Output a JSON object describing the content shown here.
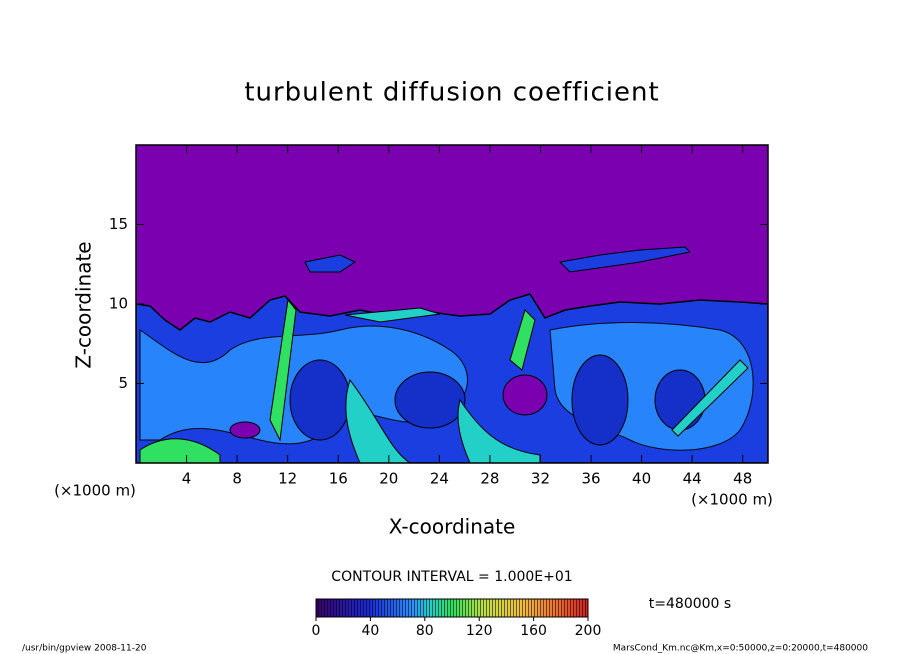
{
  "chart_data": {
    "type": "contour",
    "title": "turbulent diffusion coefficient",
    "xlabel": "X-coordinate",
    "ylabel": "Z-coordinate",
    "xunit": "(×1000 m)",
    "yunit": "(×1000 m)",
    "xlim": [
      0,
      50
    ],
    "ylim": [
      0,
      20
    ],
    "xticks": [
      4,
      8,
      12,
      16,
      20,
      24,
      28,
      32,
      36,
      40,
      44,
      48
    ],
    "yticks": [
      5,
      10,
      15
    ],
    "contour_interval": "CONTOUR INTERVAL = 1.000E+01",
    "clim": [
      0,
      200
    ],
    "cticks": [
      0,
      40,
      80,
      120,
      160,
      200
    ],
    "time": "t=480000 s",
    "footer_left": "/usr/bin/gpview  2008-11-20",
    "footer_right": "MarsCond_Km.nc@Km,x=0:50000,z=0:20000,t=480000"
  }
}
